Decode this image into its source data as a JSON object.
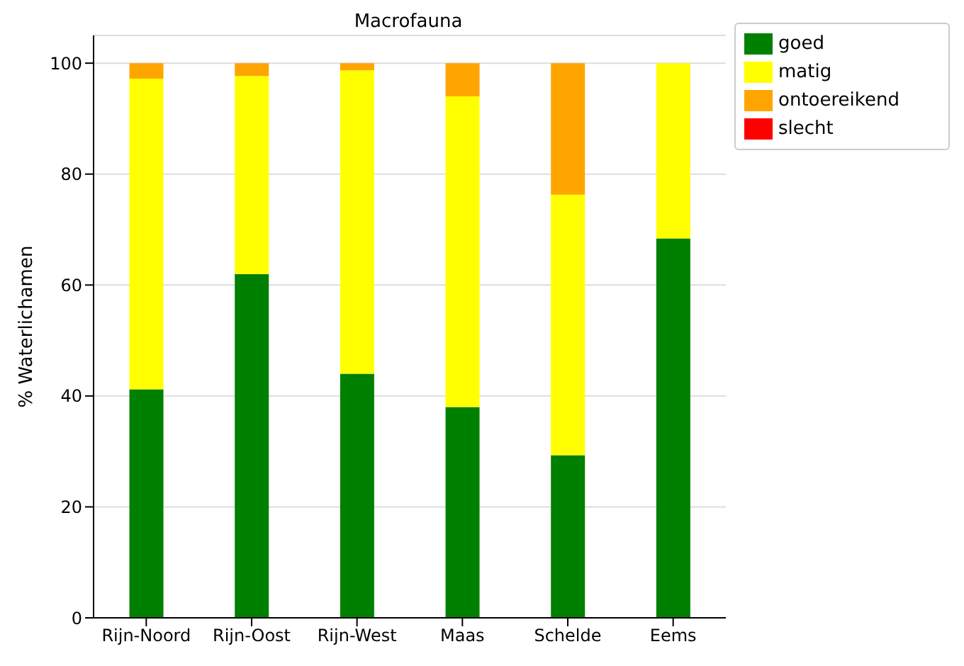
{
  "chart_data": {
    "type": "bar",
    "title": "Macrofauna",
    "ylabel": "% Waterlichamen",
    "categories": [
      "Rijn-Noord",
      "Rijn-Oost",
      "Rijn-West",
      "Maas",
      "Schelde",
      "Eems"
    ],
    "stacked": true,
    "series": [
      {
        "name": "goed",
        "color": "#008000",
        "values": [
          41.2,
          62,
          44,
          38,
          29.3,
          68.4
        ]
      },
      {
        "name": "matig",
        "color": "#ffff00",
        "values": [
          56,
          35.7,
          54.7,
          56,
          47,
          31.6
        ]
      },
      {
        "name": "ontoereikend",
        "color": "#ffa500",
        "values": [
          2.8,
          2.3,
          1.3,
          6,
          23.7,
          0
        ]
      },
      {
        "name": "slecht",
        "color": "#ff0000",
        "values": [
          0,
          0,
          0,
          0,
          0,
          0
        ]
      }
    ],
    "ylim": [
      0,
      105
    ],
    "yticks": [
      0,
      20,
      40,
      60,
      80,
      100
    ],
    "grid": "y",
    "legend": "top right"
  }
}
